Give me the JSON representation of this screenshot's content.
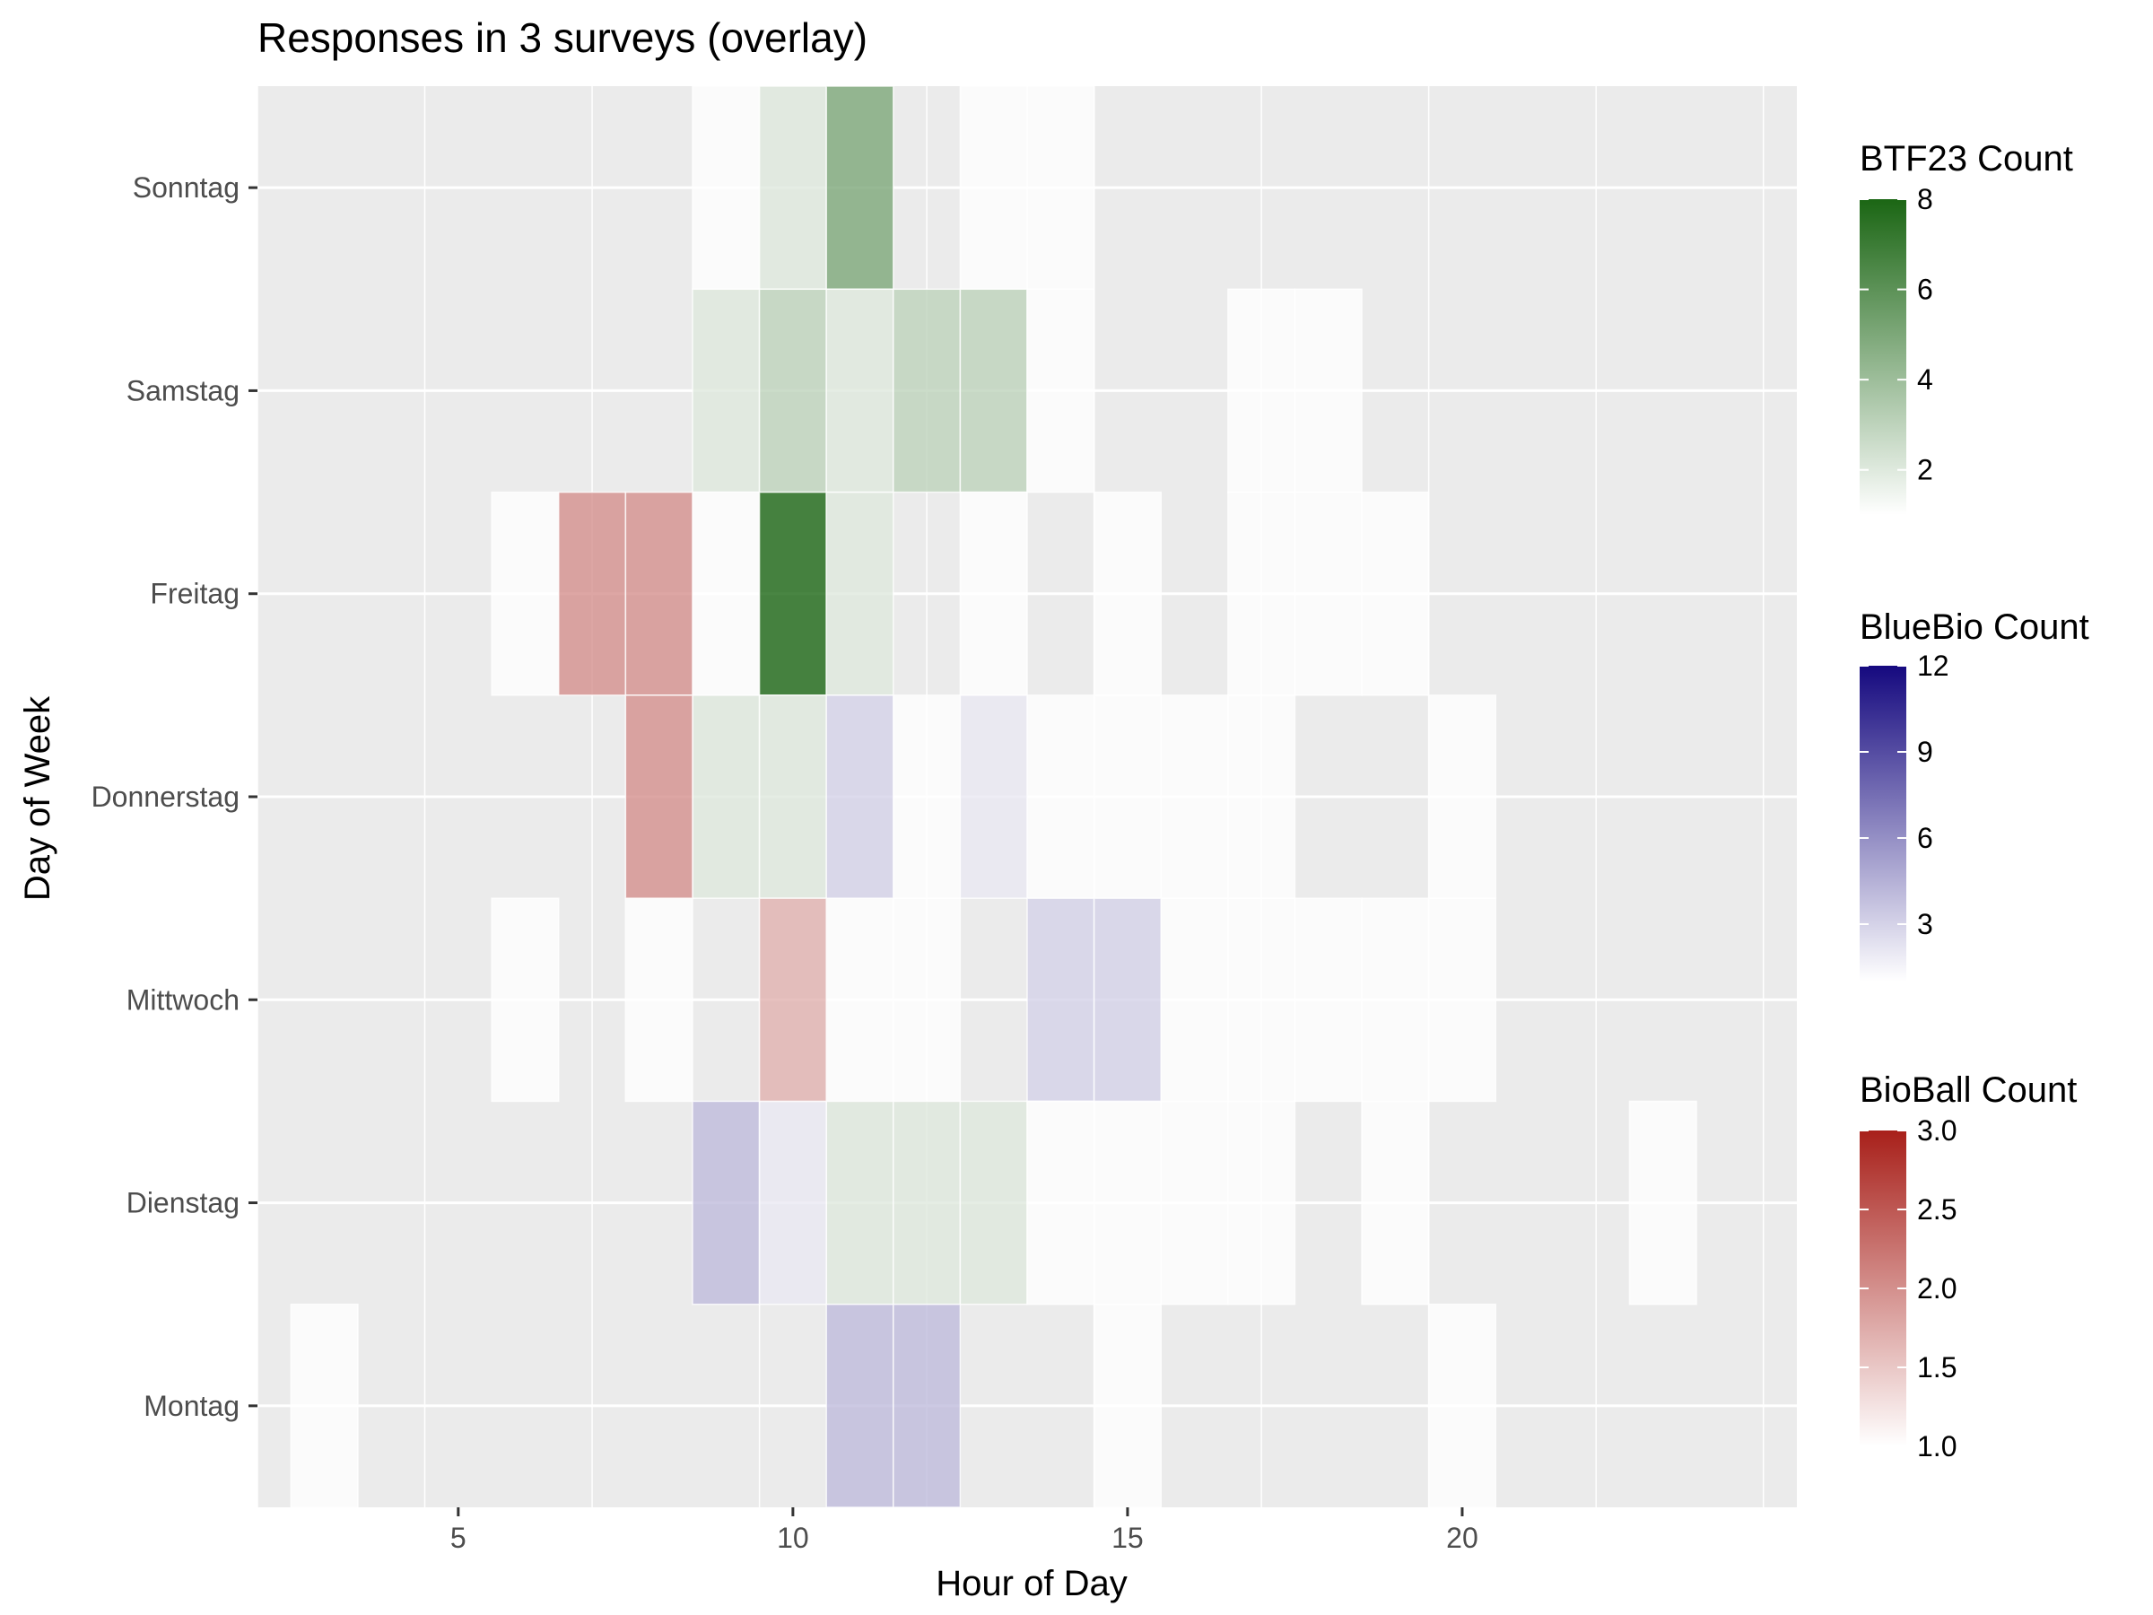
{
  "chart_data": {
    "type": "heatmap",
    "title": "Responses in 3 surveys (overlay)",
    "xlabel": "Hour of Day",
    "ylabel": "Day of Week",
    "xlim": [
      2,
      25
    ],
    "x_ticks": [
      5,
      10,
      15,
      20
    ],
    "y_categories": [
      "Montag",
      "Dienstag",
      "Mittwoch",
      "Donnerstag",
      "Freitag",
      "Samstag",
      "Sonntag"
    ],
    "grid": true,
    "legend_position": "right",
    "series": [
      {
        "name": "BTF23 Count",
        "color_low": "#ffffff",
        "color_high": "#1b6614",
        "limits": [
          1,
          8
        ],
        "legend_ticks": [
          2,
          4,
          6,
          8
        ],
        "cells": [
          {
            "hour": 9,
            "day": "Sonntag",
            "count": 1
          },
          {
            "hour": 10,
            "day": "Sonntag",
            "count": 2
          },
          {
            "hour": 11,
            "day": "Sonntag",
            "count": 5
          },
          {
            "hour": 13,
            "day": "Sonntag",
            "count": 1
          },
          {
            "hour": 14,
            "day": "Sonntag",
            "count": 1
          },
          {
            "hour": 9,
            "day": "Samstag",
            "count": 2
          },
          {
            "hour": 10,
            "day": "Samstag",
            "count": 3
          },
          {
            "hour": 11,
            "day": "Samstag",
            "count": 2
          },
          {
            "hour": 12,
            "day": "Samstag",
            "count": 3
          },
          {
            "hour": 13,
            "day": "Samstag",
            "count": 3
          },
          {
            "hour": 14,
            "day": "Samstag",
            "count": 1
          },
          {
            "hour": 17,
            "day": "Samstag",
            "count": 1
          },
          {
            "hour": 18,
            "day": "Samstag",
            "count": 1
          },
          {
            "hour": 6,
            "day": "Freitag",
            "count": 1
          },
          {
            "hour": 9,
            "day": "Freitag",
            "count": 1
          },
          {
            "hour": 10,
            "day": "Freitag",
            "count": 8
          },
          {
            "hour": 11,
            "day": "Freitag",
            "count": 2
          },
          {
            "hour": 15,
            "day": "Freitag",
            "count": 1
          },
          {
            "hour": 17,
            "day": "Freitag",
            "count": 1
          },
          {
            "hour": 18,
            "day": "Freitag",
            "count": 1
          },
          {
            "hour": 19,
            "day": "Freitag",
            "count": 1
          },
          {
            "hour": 9,
            "day": "Donnerstag",
            "count": 2
          },
          {
            "hour": 10,
            "day": "Donnerstag",
            "count": 2
          },
          {
            "hour": 12,
            "day": "Donnerstag",
            "count": 1
          },
          {
            "hour": 14,
            "day": "Donnerstag",
            "count": 1
          },
          {
            "hour": 16,
            "day": "Donnerstag",
            "count": 1
          },
          {
            "hour": 17,
            "day": "Donnerstag",
            "count": 1
          },
          {
            "hour": 20,
            "day": "Donnerstag",
            "count": 1
          },
          {
            "hour": 6,
            "day": "Mittwoch",
            "count": 1
          },
          {
            "hour": 8,
            "day": "Mittwoch",
            "count": 1
          },
          {
            "hour": 11,
            "day": "Mittwoch",
            "count": 1
          },
          {
            "hour": 12,
            "day": "Mittwoch",
            "count": 1
          },
          {
            "hour": 16,
            "day": "Mittwoch",
            "count": 1
          },
          {
            "hour": 17,
            "day": "Mittwoch",
            "count": 1
          },
          {
            "hour": 18,
            "day": "Mittwoch",
            "count": 1
          },
          {
            "hour": 19,
            "day": "Mittwoch",
            "count": 1
          },
          {
            "hour": 20,
            "day": "Mittwoch",
            "count": 1
          },
          {
            "hour": 11,
            "day": "Dienstag",
            "count": 2
          },
          {
            "hour": 12,
            "day": "Dienstag",
            "count": 2
          },
          {
            "hour": 13,
            "day": "Dienstag",
            "count": 2
          },
          {
            "hour": 15,
            "day": "Dienstag",
            "count": 1
          },
          {
            "hour": 19,
            "day": "Dienstag",
            "count": 1
          },
          {
            "hour": 23,
            "day": "Dienstag",
            "count": 1
          },
          {
            "hour": 3,
            "day": "Montag",
            "count": 1
          },
          {
            "hour": 15,
            "day": "Montag",
            "count": 1
          },
          {
            "hour": 20,
            "day": "Montag",
            "count": 1
          }
        ]
      },
      {
        "name": "BlueBio Count",
        "color_low": "#ffffff",
        "color_high": "#15097f",
        "limits": [
          1,
          12
        ],
        "legend_ticks": [
          3,
          6,
          9,
          12
        ],
        "cells": [
          {
            "hour": 13,
            "day": "Freitag",
            "count": 1
          },
          {
            "hour": 11,
            "day": "Donnerstag",
            "count": 3
          },
          {
            "hour": 13,
            "day": "Donnerstag",
            "count": 2
          },
          {
            "hour": 15,
            "day": "Donnerstag",
            "count": 1
          },
          {
            "hour": 14,
            "day": "Mittwoch",
            "count": 3
          },
          {
            "hour": 15,
            "day": "Mittwoch",
            "count": 3
          },
          {
            "hour": 9,
            "day": "Dienstag",
            "count": 4
          },
          {
            "hour": 10,
            "day": "Dienstag",
            "count": 2
          },
          {
            "hour": 17,
            "day": "Dienstag",
            "count": 1
          },
          {
            "hour": 11,
            "day": "Montag",
            "count": 4
          },
          {
            "hour": 12,
            "day": "Montag",
            "count": 4
          }
        ]
      },
      {
        "name": "BioBall Count",
        "color_low": "#ffffff",
        "color_high": "#a8201a",
        "limits": [
          1,
          3
        ],
        "legend_ticks": [
          1.0,
          1.5,
          2.0,
          2.5,
          3.0
        ],
        "cells": [
          {
            "hour": 7,
            "day": "Freitag",
            "count": 2
          },
          {
            "hour": 8,
            "day": "Freitag",
            "count": 2
          },
          {
            "hour": 8,
            "day": "Donnerstag",
            "count": 2
          },
          {
            "hour": 10,
            "day": "Mittwoch",
            "count": 1.7
          },
          {
            "hour": 14,
            "day": "Dienstag",
            "count": 1
          },
          {
            "hour": 16,
            "day": "Dienstag",
            "count": 1
          }
        ]
      }
    ]
  }
}
